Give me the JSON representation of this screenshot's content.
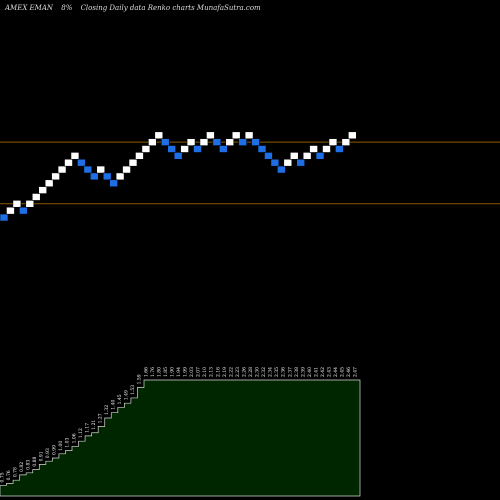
{
  "header": {
    "ticker": "AMEX  EMAN",
    "change": "8%",
    "caption": "Closing Daily data  Renko  charts MunafaSutra.com"
  },
  "chart_data": {
    "type": "renko",
    "colors": {
      "up": "#ffffff",
      "down": "#1e6fe6",
      "background": "#000000",
      "level_line": "#8a5a00",
      "volume_fill": "#002600",
      "volume_edge": "#d8d8d8"
    },
    "bricks": [
      {
        "dir": "down",
        "level": 0
      },
      {
        "dir": "up",
        "level": 1
      },
      {
        "dir": "up",
        "level": 2
      },
      {
        "dir": "down",
        "level": 1
      },
      {
        "dir": "up",
        "level": 2
      },
      {
        "dir": "up",
        "level": 3
      },
      {
        "dir": "up",
        "level": 4
      },
      {
        "dir": "up",
        "level": 5
      },
      {
        "dir": "up",
        "level": 6
      },
      {
        "dir": "up",
        "level": 7
      },
      {
        "dir": "up",
        "level": 8
      },
      {
        "dir": "up",
        "level": 9
      },
      {
        "dir": "down",
        "level": 8
      },
      {
        "dir": "down",
        "level": 7
      },
      {
        "dir": "down",
        "level": 6
      },
      {
        "dir": "up",
        "level": 7
      },
      {
        "dir": "down",
        "level": 6
      },
      {
        "dir": "down",
        "level": 5
      },
      {
        "dir": "up",
        "level": 6
      },
      {
        "dir": "up",
        "level": 7
      },
      {
        "dir": "up",
        "level": 8
      },
      {
        "dir": "up",
        "level": 9
      },
      {
        "dir": "up",
        "level": 10
      },
      {
        "dir": "up",
        "level": 11
      },
      {
        "dir": "up",
        "level": 12
      },
      {
        "dir": "down",
        "level": 11
      },
      {
        "dir": "down",
        "level": 10
      },
      {
        "dir": "down",
        "level": 9
      },
      {
        "dir": "up",
        "level": 10
      },
      {
        "dir": "up",
        "level": 11
      },
      {
        "dir": "down",
        "level": 10
      },
      {
        "dir": "up",
        "level": 11
      },
      {
        "dir": "up",
        "level": 12
      },
      {
        "dir": "down",
        "level": 11
      },
      {
        "dir": "down",
        "level": 10
      },
      {
        "dir": "up",
        "level": 11
      },
      {
        "dir": "up",
        "level": 12
      },
      {
        "dir": "down",
        "level": 11
      },
      {
        "dir": "up",
        "level": 12
      },
      {
        "dir": "down",
        "level": 11
      },
      {
        "dir": "down",
        "level": 10
      },
      {
        "dir": "down",
        "level": 9
      },
      {
        "dir": "down",
        "level": 8
      },
      {
        "dir": "down",
        "level": 7
      },
      {
        "dir": "up",
        "level": 8
      },
      {
        "dir": "up",
        "level": 9
      },
      {
        "dir": "down",
        "level": 8
      },
      {
        "dir": "up",
        "level": 9
      },
      {
        "dir": "up",
        "level": 10
      },
      {
        "dir": "down",
        "level": 9
      },
      {
        "dir": "up",
        "level": 10
      },
      {
        "dir": "up",
        "level": 11
      },
      {
        "dir": "down",
        "level": 10
      },
      {
        "dir": "up",
        "level": 11
      },
      {
        "dir": "up",
        "level": 12
      }
    ],
    "level_lines": [
      11,
      2
    ],
    "volume_profile": {
      "values": [
        1,
        1.2,
        1.5,
        2,
        2.2,
        2.5,
        3,
        3.3,
        3.6,
        4,
        4.3,
        4.7,
        5.2,
        5.7,
        6,
        6.6,
        7.4,
        7.9,
        8.4,
        8.8,
        9.3,
        10.3,
        11,
        11,
        11,
        11,
        11,
        11,
        11,
        11,
        11,
        11,
        11,
        11,
        11,
        11,
        11,
        11,
        11,
        11,
        11,
        11,
        11,
        11,
        11,
        11,
        11,
        11,
        11,
        11,
        11,
        11,
        11,
        11,
        11
      ],
      "ymax": 12,
      "bar_labels": [
        "0.75",
        "0.76",
        "0.78",
        "0.82",
        "0.83",
        "0.88",
        "0.91",
        "0.93",
        "0.99",
        "1.00",
        "1.03",
        "1.06",
        "1.12",
        "1.17",
        "1.21",
        "1.27",
        "1.32",
        "1.40",
        "1.45",
        "1.49",
        "1.53",
        "1.59",
        "1.66",
        "1.76",
        "1.80",
        "1.85",
        "1.90",
        "1.94",
        "1.99",
        "2.03",
        "2.07",
        "2.10",
        "2.13",
        "2.16",
        "2.19",
        "2.22",
        "2.23",
        "2.26",
        "2.28",
        "2.30",
        "2.32",
        "2.34",
        "2.35",
        "2.36",
        "2.37",
        "2.38",
        "2.39",
        "2.40",
        "2.41",
        "2.42",
        "2.43",
        "2.44",
        "2.45",
        "2.46",
        "2.47"
      ]
    },
    "xlabel": "",
    "ylabel": ""
  }
}
